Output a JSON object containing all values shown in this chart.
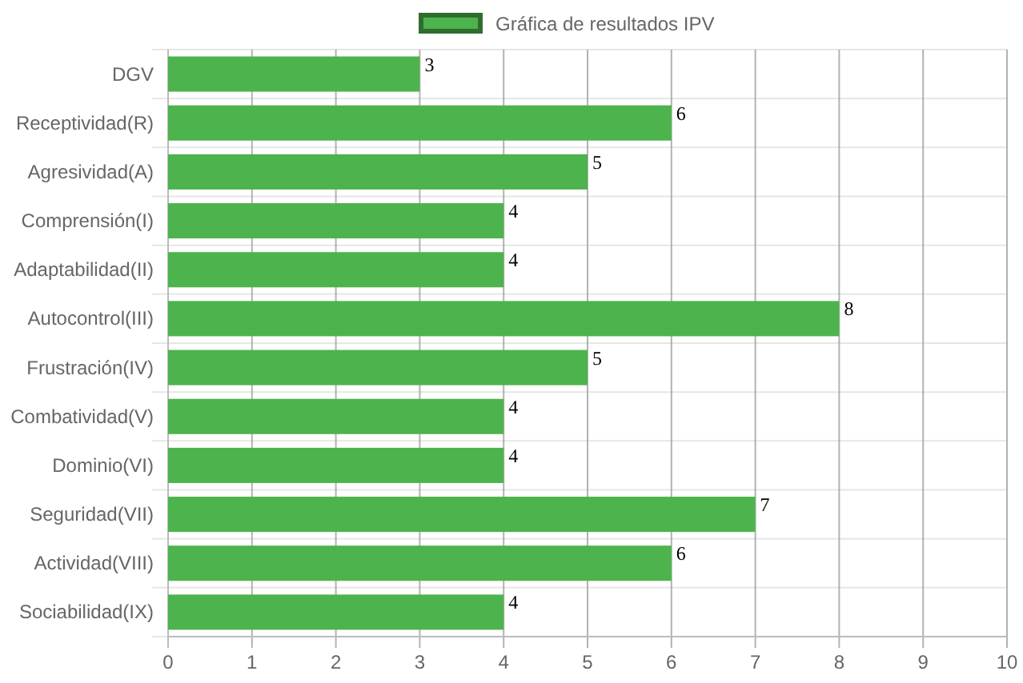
{
  "chart_data": {
    "type": "bar",
    "orientation": "horizontal",
    "categories": [
      "DGV",
      "Receptividad(R)",
      "Agresividad(A)",
      "Comprensión(I)",
      "Adaptabilidad(II)",
      "Autocontrol(III)",
      "Frustración(IV)",
      "Combatividad(V)",
      "Dominio(VI)",
      "Seguridad(VII)",
      "Actividad(VIII)",
      "Sociabilidad(IX)"
    ],
    "series": [
      {
        "name": "Gráfica de resultados IPV",
        "color": "#4db34d",
        "values": [
          3,
          6,
          5,
          4,
          4,
          8,
          5,
          4,
          4,
          7,
          6,
          4
        ]
      }
    ],
    "xlim": [
      0,
      10
    ],
    "xticks": [
      0,
      1,
      2,
      3,
      4,
      5,
      6,
      7,
      8,
      9,
      10
    ],
    "grid": true,
    "legend": "top",
    "data_labels": true
  }
}
